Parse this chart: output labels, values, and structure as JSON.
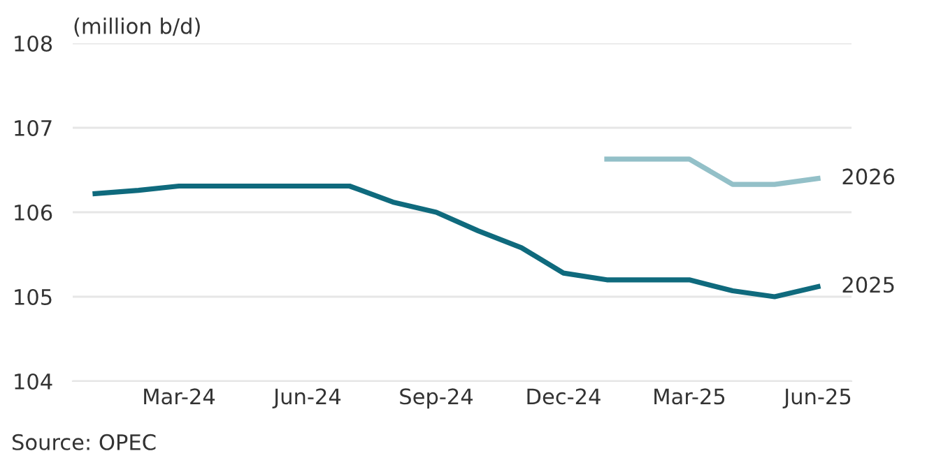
{
  "chart_data": {
    "type": "line",
    "ylabel": "(million b/d)",
    "annotations": [
      "Source: OPEC"
    ],
    "x": [
      "2024-01-01",
      "2024-02-01",
      "2024-03-01",
      "2024-04-01",
      "2024-05-01",
      "2024-06-01",
      "2024-07-01",
      "2024-08-01",
      "2024-09-01",
      "2024-10-01",
      "2024-11-01",
      "2024-12-01",
      "2025-01-01",
      "2025-02-01",
      "2025-03-01",
      "2025-04-01",
      "2025-05-01",
      "2025-06-01"
    ],
    "series": [
      {
        "name": "2025",
        "color": "#0f6a7d",
        "values": [
          106.22,
          106.26,
          106.31,
          106.31,
          106.31,
          106.31,
          106.31,
          106.12,
          106.0,
          105.78,
          105.58,
          105.28,
          105.2,
          105.2,
          105.2,
          105.07,
          105.0,
          105.12
        ]
      },
      {
        "name": "2026",
        "color": "#93c0c8",
        "values": [
          null,
          null,
          null,
          null,
          null,
          null,
          null,
          null,
          null,
          null,
          null,
          null,
          106.63,
          106.63,
          106.63,
          106.33,
          106.33,
          106.4
        ]
      }
    ],
    "xlim": [
      "2023-12-16",
      "2025-06-25"
    ],
    "xticks": [
      {
        "value": "2024-03-01",
        "label": "Mar-24"
      },
      {
        "value": "2024-06-01",
        "label": "Jun-24"
      },
      {
        "value": "2024-09-01",
        "label": "Sep-24"
      },
      {
        "value": "2024-12-01",
        "label": "Dec-24"
      },
      {
        "value": "2025-03-01",
        "label": "Mar-25"
      },
      {
        "value": "2025-06-01",
        "label": "Jun-25"
      }
    ],
    "ylim": [
      104,
      108
    ],
    "yticks": [
      104,
      105,
      106,
      107,
      108
    ],
    "grid": "y",
    "legend": false,
    "marker": "none",
    "line_style": "solid"
  }
}
